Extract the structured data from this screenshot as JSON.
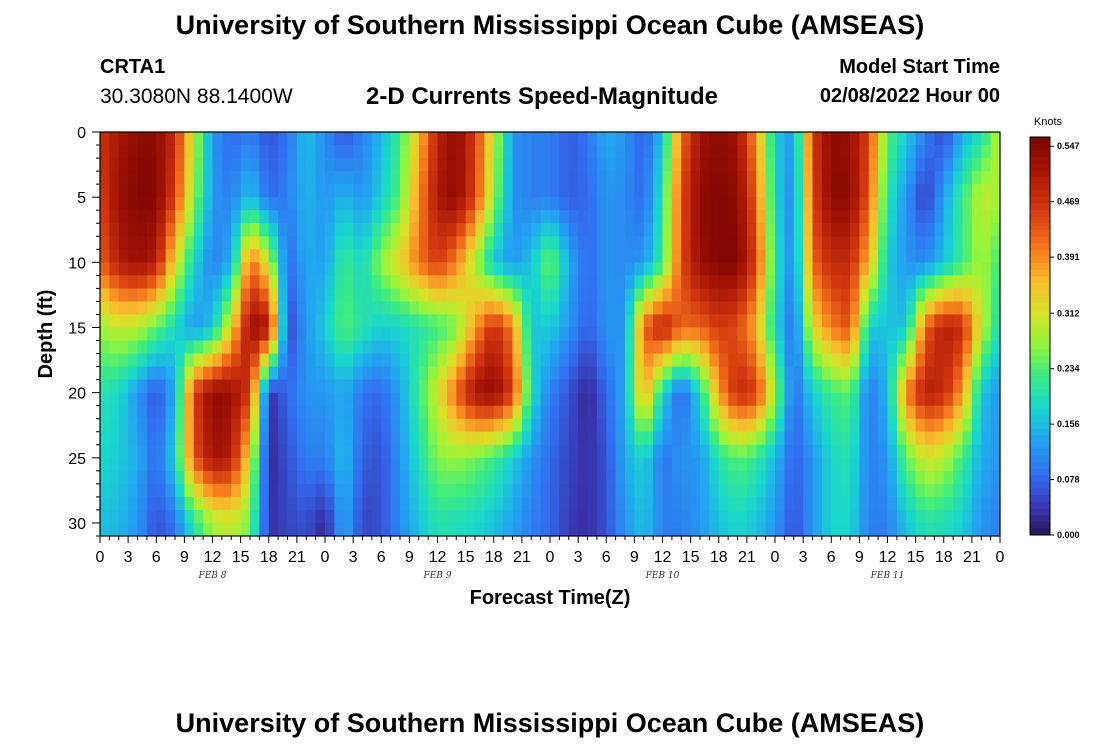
{
  "page": {
    "title": "University of Southern Mississippi Ocean Cube (AMSEAS)",
    "station_id": "CRTA1",
    "station_coords": "30.3080N  88.1400W",
    "plot_title": "2-D Currents Speed-Magnitude",
    "start_label": "Model Start Time",
    "start_value": "02/08/2022 Hour 00",
    "bottom_title": "University of Southern Mississippi Ocean Cube (AMSEAS)"
  },
  "chart_data": {
    "type": "heatmap",
    "title": "2-D Currents Speed-Magnitude",
    "xlabel": "Forecast Time(Z)",
    "ylabel": "Depth (ft)",
    "xlim": [
      0,
      96
    ],
    "ylim": [
      31,
      0
    ],
    "x_tick_labels": [
      "0",
      "3",
      "6",
      "9",
      "12",
      "15",
      "18",
      "21",
      "0",
      "3",
      "6",
      "9",
      "12",
      "15",
      "18",
      "21",
      "0",
      "3",
      "6",
      "9",
      "12",
      "15",
      "18",
      "21",
      "0",
      "3",
      "6",
      "9",
      "12",
      "15",
      "18",
      "21",
      "0"
    ],
    "y_ticks": [
      0,
      5,
      10,
      15,
      20,
      25,
      30
    ],
    "day_labels": [
      {
        "label": "FEB 8",
        "hour": 12
      },
      {
        "label": "FEB 9",
        "hour": 36
      },
      {
        "label": "FEB 10",
        "hour": 60
      },
      {
        "label": "FEB 11",
        "hour": 84
      }
    ],
    "colorbar": {
      "unit": "Knots",
      "min": 0.0,
      "max": 0.56,
      "tick_labels": [
        "0.000",
        "0.078",
        "0.156",
        "0.234",
        "0.312",
        "0.391",
        "0.469",
        "0.547"
      ]
    },
    "grid_hours": [
      0,
      2,
      4,
      6,
      8,
      10,
      12,
      14,
      16,
      18,
      20,
      22,
      24,
      26,
      28,
      30,
      32,
      34,
      36,
      38,
      40,
      42,
      44,
      46,
      48,
      50,
      52,
      54,
      56,
      58,
      60,
      62,
      64,
      66,
      68,
      70,
      72,
      74,
      76,
      78,
      80,
      82,
      84,
      86,
      88,
      90,
      92,
      94,
      96
    ],
    "grid_depths": [
      0,
      5,
      10,
      15,
      20,
      25,
      30
    ],
    "speed_knots": [
      [
        0.47,
        0.51,
        0.54,
        0.54,
        0.48,
        0.3,
        0.12,
        0.08,
        0.1,
        0.06,
        0.09,
        0.16,
        0.11,
        0.06,
        0.1,
        0.15,
        0.22,
        0.35,
        0.49,
        0.54,
        0.46,
        0.3,
        0.12,
        0.1,
        0.1,
        0.07,
        0.09,
        0.14,
        0.12,
        0.07,
        0.16,
        0.41,
        0.52,
        0.54,
        0.52,
        0.38,
        0.17,
        0.12,
        0.46,
        0.54,
        0.53,
        0.45,
        0.24,
        0.17,
        0.1,
        0.05,
        0.14,
        0.19,
        0.3
      ],
      [
        0.45,
        0.53,
        0.55,
        0.55,
        0.45,
        0.27,
        0.12,
        0.1,
        0.16,
        0.08,
        0.1,
        0.15,
        0.12,
        0.15,
        0.12,
        0.17,
        0.24,
        0.39,
        0.51,
        0.54,
        0.45,
        0.27,
        0.12,
        0.1,
        0.1,
        0.07,
        0.08,
        0.12,
        0.11,
        0.08,
        0.2,
        0.44,
        0.54,
        0.55,
        0.54,
        0.42,
        0.18,
        0.1,
        0.45,
        0.54,
        0.54,
        0.43,
        0.2,
        0.12,
        0.04,
        0.13,
        0.22,
        0.3,
        0.28
      ],
      [
        0.42,
        0.5,
        0.53,
        0.5,
        0.32,
        0.18,
        0.1,
        0.14,
        0.42,
        0.3,
        0.08,
        0.14,
        0.13,
        0.22,
        0.18,
        0.27,
        0.33,
        0.41,
        0.46,
        0.4,
        0.28,
        0.16,
        0.12,
        0.16,
        0.26,
        0.14,
        0.08,
        0.12,
        0.11,
        0.12,
        0.22,
        0.44,
        0.53,
        0.55,
        0.55,
        0.45,
        0.2,
        0.1,
        0.42,
        0.48,
        0.48,
        0.36,
        0.17,
        0.12,
        0.11,
        0.16,
        0.22,
        0.28,
        0.22
      ],
      [
        0.27,
        0.3,
        0.29,
        0.24,
        0.18,
        0.12,
        0.16,
        0.33,
        0.53,
        0.52,
        0.05,
        0.12,
        0.17,
        0.24,
        0.2,
        0.17,
        0.18,
        0.2,
        0.22,
        0.25,
        0.38,
        0.48,
        0.4,
        0.16,
        0.17,
        0.12,
        0.07,
        0.12,
        0.12,
        0.42,
        0.5,
        0.42,
        0.42,
        0.46,
        0.44,
        0.36,
        0.18,
        0.08,
        0.32,
        0.4,
        0.44,
        0.17,
        0.16,
        0.16,
        0.42,
        0.5,
        0.48,
        0.3,
        0.18
      ],
      [
        0.2,
        0.18,
        0.12,
        0.06,
        0.14,
        0.45,
        0.54,
        0.53,
        0.46,
        0.03,
        0.08,
        0.12,
        0.12,
        0.14,
        0.09,
        0.08,
        0.13,
        0.22,
        0.31,
        0.42,
        0.52,
        0.54,
        0.46,
        0.19,
        0.1,
        0.06,
        0.02,
        0.08,
        0.14,
        0.38,
        0.18,
        0.07,
        0.18,
        0.38,
        0.48,
        0.46,
        0.27,
        0.08,
        0.17,
        0.22,
        0.24,
        0.09,
        0.15,
        0.4,
        0.5,
        0.48,
        0.38,
        0.16,
        0.12
      ],
      [
        0.18,
        0.17,
        0.14,
        0.08,
        0.18,
        0.43,
        0.52,
        0.5,
        0.32,
        0.02,
        0.06,
        0.1,
        0.1,
        0.16,
        0.07,
        0.06,
        0.12,
        0.19,
        0.26,
        0.27,
        0.25,
        0.22,
        0.17,
        0.12,
        0.08,
        0.05,
        0.03,
        0.06,
        0.14,
        0.18,
        0.09,
        0.12,
        0.12,
        0.2,
        0.24,
        0.21,
        0.15,
        0.07,
        0.12,
        0.18,
        0.2,
        0.1,
        0.12,
        0.24,
        0.31,
        0.29,
        0.22,
        0.14,
        0.12
      ],
      [
        0.16,
        0.15,
        0.12,
        0.06,
        0.09,
        0.2,
        0.28,
        0.3,
        0.25,
        0.03,
        0.05,
        0.06,
        0.02,
        0.14,
        0.05,
        0.06,
        0.11,
        0.16,
        0.2,
        0.19,
        0.18,
        0.16,
        0.13,
        0.1,
        0.08,
        0.04,
        0.03,
        0.06,
        0.12,
        0.16,
        0.1,
        0.1,
        0.12,
        0.16,
        0.18,
        0.16,
        0.12,
        0.06,
        0.12,
        0.18,
        0.18,
        0.1,
        0.1,
        0.16,
        0.2,
        0.19,
        0.17,
        0.12,
        0.1
      ]
    ]
  }
}
